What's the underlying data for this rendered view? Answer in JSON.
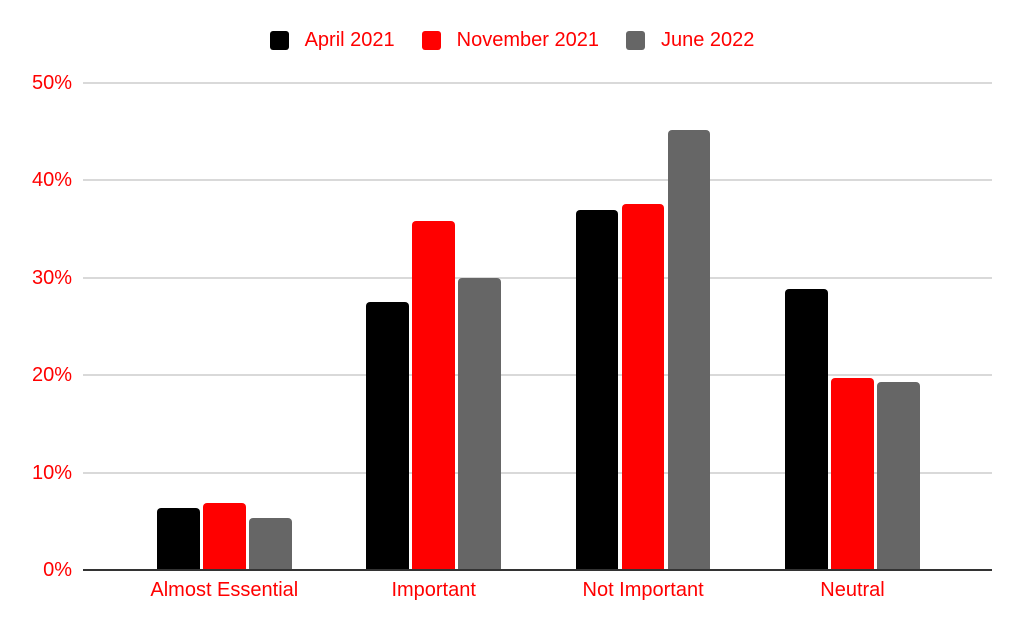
{
  "chart_data": {
    "type": "bar",
    "title": "",
    "categories": [
      "Almost Essential",
      "Important",
      "Not Important",
      "Neutral"
    ],
    "series": [
      {
        "name": "April 2021",
        "color": "#000000",
        "values": [
          6.4,
          27.5,
          37.0,
          28.9
        ]
      },
      {
        "name": "November 2021",
        "color": "#ff0000",
        "values": [
          6.9,
          35.8,
          37.6,
          19.7
        ]
      },
      {
        "name": "June 2022",
        "color": "#666666",
        "values": [
          5.3,
          30.0,
          45.2,
          19.3
        ]
      }
    ],
    "xlabel": "",
    "ylabel": "",
    "ylim": [
      0,
      50
    ],
    "ytick_step": 10,
    "ytick_labels": [
      "0%",
      "10%",
      "20%",
      "30%",
      "40%",
      "50%"
    ],
    "grid": true,
    "legend_position": "top",
    "colors": {
      "text": "#ff0000",
      "gridline": "#d9d9d9",
      "axis_line": "#333333",
      "background": "#ffffff"
    }
  }
}
